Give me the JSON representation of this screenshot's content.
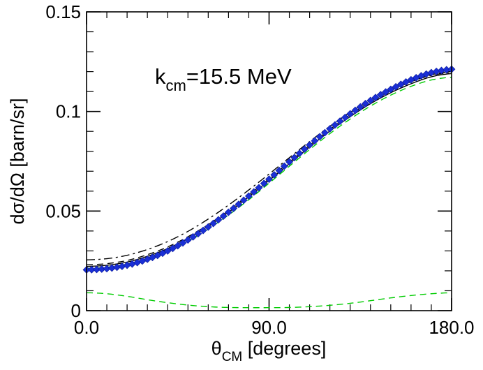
{
  "chart_data": {
    "type": "line",
    "title_parts": {
      "main": "k",
      "sub": "cm",
      "rest": "=15.5 MeV"
    },
    "xlabel_parts": {
      "main": "θ",
      "sub": "CM",
      "rest": " [degrees]"
    },
    "ylabel": "dσ/dΩ [barn/sr]",
    "xlim": [
      0,
      180
    ],
    "ylim": [
      0,
      0.15
    ],
    "x_ticks": [
      0,
      90,
      180
    ],
    "x_tick_labels": [
      "0.0",
      "90.0",
      "180.0"
    ],
    "y_ticks": [
      0,
      0.05,
      0.1,
      0.15
    ],
    "y_tick_labels": [
      "0",
      "0.05",
      "0.1",
      "0.15"
    ],
    "x": [
      0,
      10,
      20,
      30,
      40,
      50,
      60,
      70,
      80,
      90,
      100,
      110,
      120,
      130,
      140,
      150,
      160,
      170,
      180
    ],
    "series": [
      {
        "name": "data-diamonds",
        "style": "markers",
        "color": "#1a2fd6",
        "values": [
          0.0205,
          0.0211,
          0.0228,
          0.0258,
          0.03,
          0.0355,
          0.042,
          0.0494,
          0.0575,
          0.066,
          0.0747,
          0.0832,
          0.0913,
          0.0988,
          0.1055,
          0.1111,
          0.1159,
          0.1195,
          0.1212
        ]
      },
      {
        "name": "solid-black",
        "style": "solid",
        "color": "#000000",
        "values": [
          0.0222,
          0.0228,
          0.0244,
          0.0273,
          0.0312,
          0.0363,
          0.0424,
          0.0494,
          0.0572,
          0.0654,
          0.0738,
          0.0822,
          0.0902,
          0.0974,
          0.1039,
          0.1094,
          0.1139,
          0.1174,
          0.119
        ]
      },
      {
        "name": "dash-black",
        "style": "dashed",
        "color": "#000000",
        "values": [
          0.023,
          0.0236,
          0.0252,
          0.0281,
          0.032,
          0.0371,
          0.0432,
          0.0502,
          0.058,
          0.0662,
          0.0746,
          0.083,
          0.091,
          0.0984,
          0.1048,
          0.1104,
          0.1149,
          0.1184,
          0.12
        ]
      },
      {
        "name": "dashdot-black",
        "style": "dashdot",
        "color": "#000000",
        "values": [
          0.0255,
          0.0261,
          0.0278,
          0.0307,
          0.0347,
          0.0398,
          0.046,
          0.053,
          0.0606,
          0.0686,
          0.0768,
          0.0849,
          0.0926,
          0.0995,
          0.1057,
          0.1108,
          0.115,
          0.1181,
          0.1195
        ]
      },
      {
        "name": "dash-green-main",
        "style": "dashed",
        "color": "#00cc00",
        "values": [
          0.0212,
          0.0218,
          0.0234,
          0.0262,
          0.0301,
          0.035,
          0.041,
          0.048,
          0.0557,
          0.064,
          0.0725,
          0.0809,
          0.0889,
          0.0962,
          0.1027,
          0.1082,
          0.1126,
          0.1158,
          0.1172
        ]
      },
      {
        "name": "dash-green-low",
        "style": "dashed",
        "color": "#00cc00",
        "values": [
          0.009,
          0.0085,
          0.0072,
          0.0055,
          0.004,
          0.0028,
          0.002,
          0.0016,
          0.0015,
          0.0015,
          0.0016,
          0.002,
          0.0027,
          0.0037,
          0.005,
          0.0064,
          0.0076,
          0.0085,
          0.009
        ]
      }
    ]
  }
}
